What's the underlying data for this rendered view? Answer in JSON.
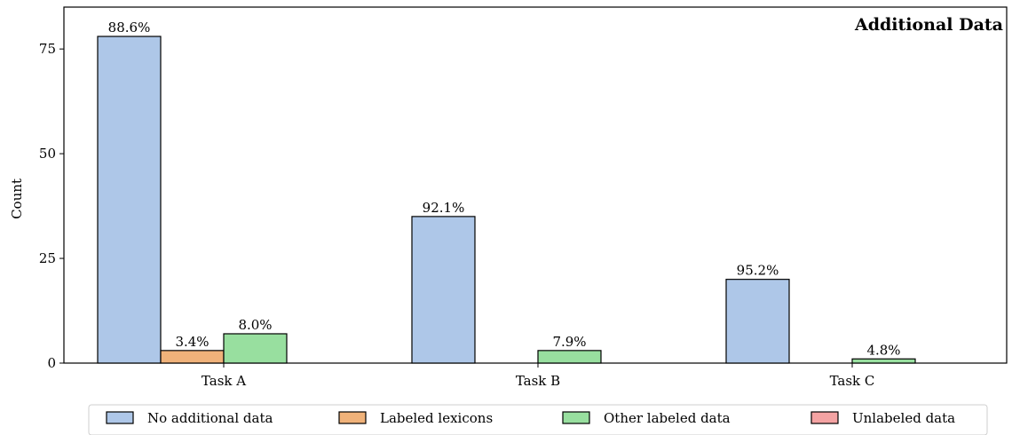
{
  "chart_data": {
    "type": "bar",
    "title": "Additional Data",
    "xlabel": "",
    "ylabel": "Count",
    "ylim": [
      0,
      85
    ],
    "yticks": [
      0,
      25,
      50,
      75
    ],
    "categories": [
      "Task A",
      "Task B",
      "Task C"
    ],
    "series": [
      {
        "name": "No additional data",
        "color": "#aec7e8",
        "values": [
          78,
          35,
          20
        ],
        "labels": [
          "88.6%",
          "92.1%",
          "95.2%"
        ]
      },
      {
        "name": "Labeled lexicons",
        "color": "#f0b27a",
        "values": [
          3,
          0,
          0
        ],
        "labels": [
          "3.4%",
          "",
          ""
        ]
      },
      {
        "name": "Other labeled data",
        "color": "#98df9f",
        "values": [
          7,
          3,
          1
        ],
        "labels": [
          "8.0%",
          "7.9%",
          "4.8%"
        ]
      },
      {
        "name": "Unlabeled data",
        "color": "#f4a3a3",
        "values": [
          0,
          0,
          0
        ],
        "labels": [
          "",
          "",
          ""
        ]
      }
    ],
    "grid": false,
    "legend_position": "bottom-center"
  }
}
